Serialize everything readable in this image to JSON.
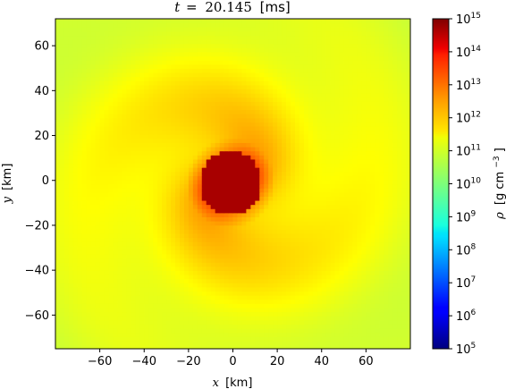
{
  "chart_data": {
    "type": "heatmap",
    "title": {
      "symbol": "t",
      "equals": "=",
      "value": "20.145",
      "unit": "[ms]"
    },
    "xlabel": {
      "symbol": "x",
      "unit": "[km]"
    },
    "ylabel": {
      "symbol": "y",
      "unit": "[km]"
    },
    "xlim": [
      -80,
      80
    ],
    "ylim": [
      -75,
      72
    ],
    "x_ticks": [
      -60,
      -40,
      -20,
      0,
      20,
      40,
      60
    ],
    "y_ticks": [
      -60,
      -40,
      -20,
      0,
      20,
      40,
      60
    ],
    "x_tick_labels": [
      "−60",
      "−40",
      "−20",
      "0",
      "20",
      "40",
      "60"
    ],
    "y_tick_labels": [
      "−60",
      "−40",
      "−20",
      "0",
      "20",
      "40",
      "60"
    ],
    "colorbar": {
      "label": {
        "symbol": "ρ",
        "unit": "[g cm",
        "exponent": "−3",
        "close": "]"
      },
      "scale": "log",
      "range": [
        100000,
        1000000000000000
      ],
      "ticks": [
        {
          "base": "10",
          "exp": "15"
        },
        {
          "base": "10",
          "exp": "14"
        },
        {
          "base": "10",
          "exp": "13"
        },
        {
          "base": "10",
          "exp": "12"
        },
        {
          "base": "10",
          "exp": "11"
        },
        {
          "base": "10",
          "exp": "10"
        },
        {
          "base": "10",
          "exp": "9"
        },
        {
          "base": "10",
          "exp": "8"
        },
        {
          "base": "10",
          "exp": "7"
        },
        {
          "base": "10",
          "exp": "6"
        },
        {
          "base": "10",
          "exp": "5"
        }
      ],
      "colormap": "jet"
    },
    "field": {
      "core_center_km": [
        -1,
        -1
      ],
      "core_radius_km": 14,
      "core_log_density": 14.6,
      "edge_log_density": 10.4,
      "arm_log_density": 12.0
    }
  }
}
